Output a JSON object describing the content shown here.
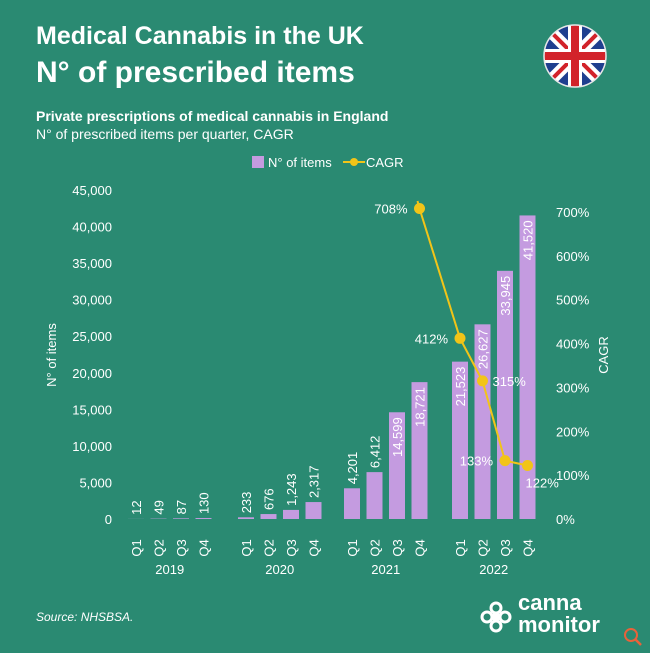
{
  "header": {
    "title_line1": "Medical Cannabis in the UK",
    "title_line2": "N° of prescribed items",
    "subtitle_bold": "Private prescriptions of medical cannabis in England",
    "subtitle": "N° of prescribed items per quarter, CAGR"
  },
  "source": "Source: NHSBSA.",
  "logo": {
    "line1": "canna",
    "line2": "monitor"
  },
  "icons": {
    "flag": "uk-flag-icon",
    "logo": "cannamonitor-logo-icon",
    "zoom": "zoom-icon"
  },
  "colors": {
    "background": "#2a8a72",
    "bars": "#c49be0",
    "line": "#f2c418",
    "text": "#ffffff"
  },
  "chart_data": {
    "type": "bar",
    "legend": [
      "N° of items",
      "CAGR"
    ],
    "legend_position": "top-center",
    "ylabel": "N° of items",
    "y2label": "CAGR",
    "ylim": [
      0,
      45000
    ],
    "y2lim": [
      0,
      7
    ],
    "yticks": [
      "0",
      "5,000",
      "10,000",
      "15,000",
      "20,000",
      "25,000",
      "30,000",
      "35,000",
      "40,000",
      "45,000"
    ],
    "y2ticks": [
      "0%",
      "100%",
      "200%",
      "300%",
      "400%",
      "500%",
      "600%",
      "700%"
    ],
    "years": [
      "2019",
      "2020",
      "2021",
      "2022"
    ],
    "quarters": [
      "Q1",
      "Q2",
      "Q3",
      "Q4"
    ],
    "series": [
      {
        "name": "N° of items",
        "values": [
          12,
          49,
          87,
          130,
          233,
          676,
          1243,
          2317,
          4201,
          6412,
          14599,
          18721,
          21523,
          26627,
          33945,
          41520
        ],
        "labels": [
          "12",
          "49",
          "87",
          "130",
          "233",
          "676",
          "1,243",
          "2,317",
          "4,201",
          "6,412",
          "14,599",
          "18,721",
          "21,523",
          "26,627",
          "33,945",
          "41,520"
        ]
      },
      {
        "name": "CAGR",
        "points": [
          {
            "index": 11,
            "value": 7.08,
            "label": "708%"
          },
          {
            "index": 12,
            "value": 4.12,
            "label": "412%"
          },
          {
            "index": 13,
            "value": 3.15,
            "label": "315%"
          },
          {
            "index": 14,
            "value": 1.33,
            "label": "133%"
          },
          {
            "index": 15,
            "value": 1.22,
            "label": "122%"
          }
        ]
      }
    ]
  }
}
